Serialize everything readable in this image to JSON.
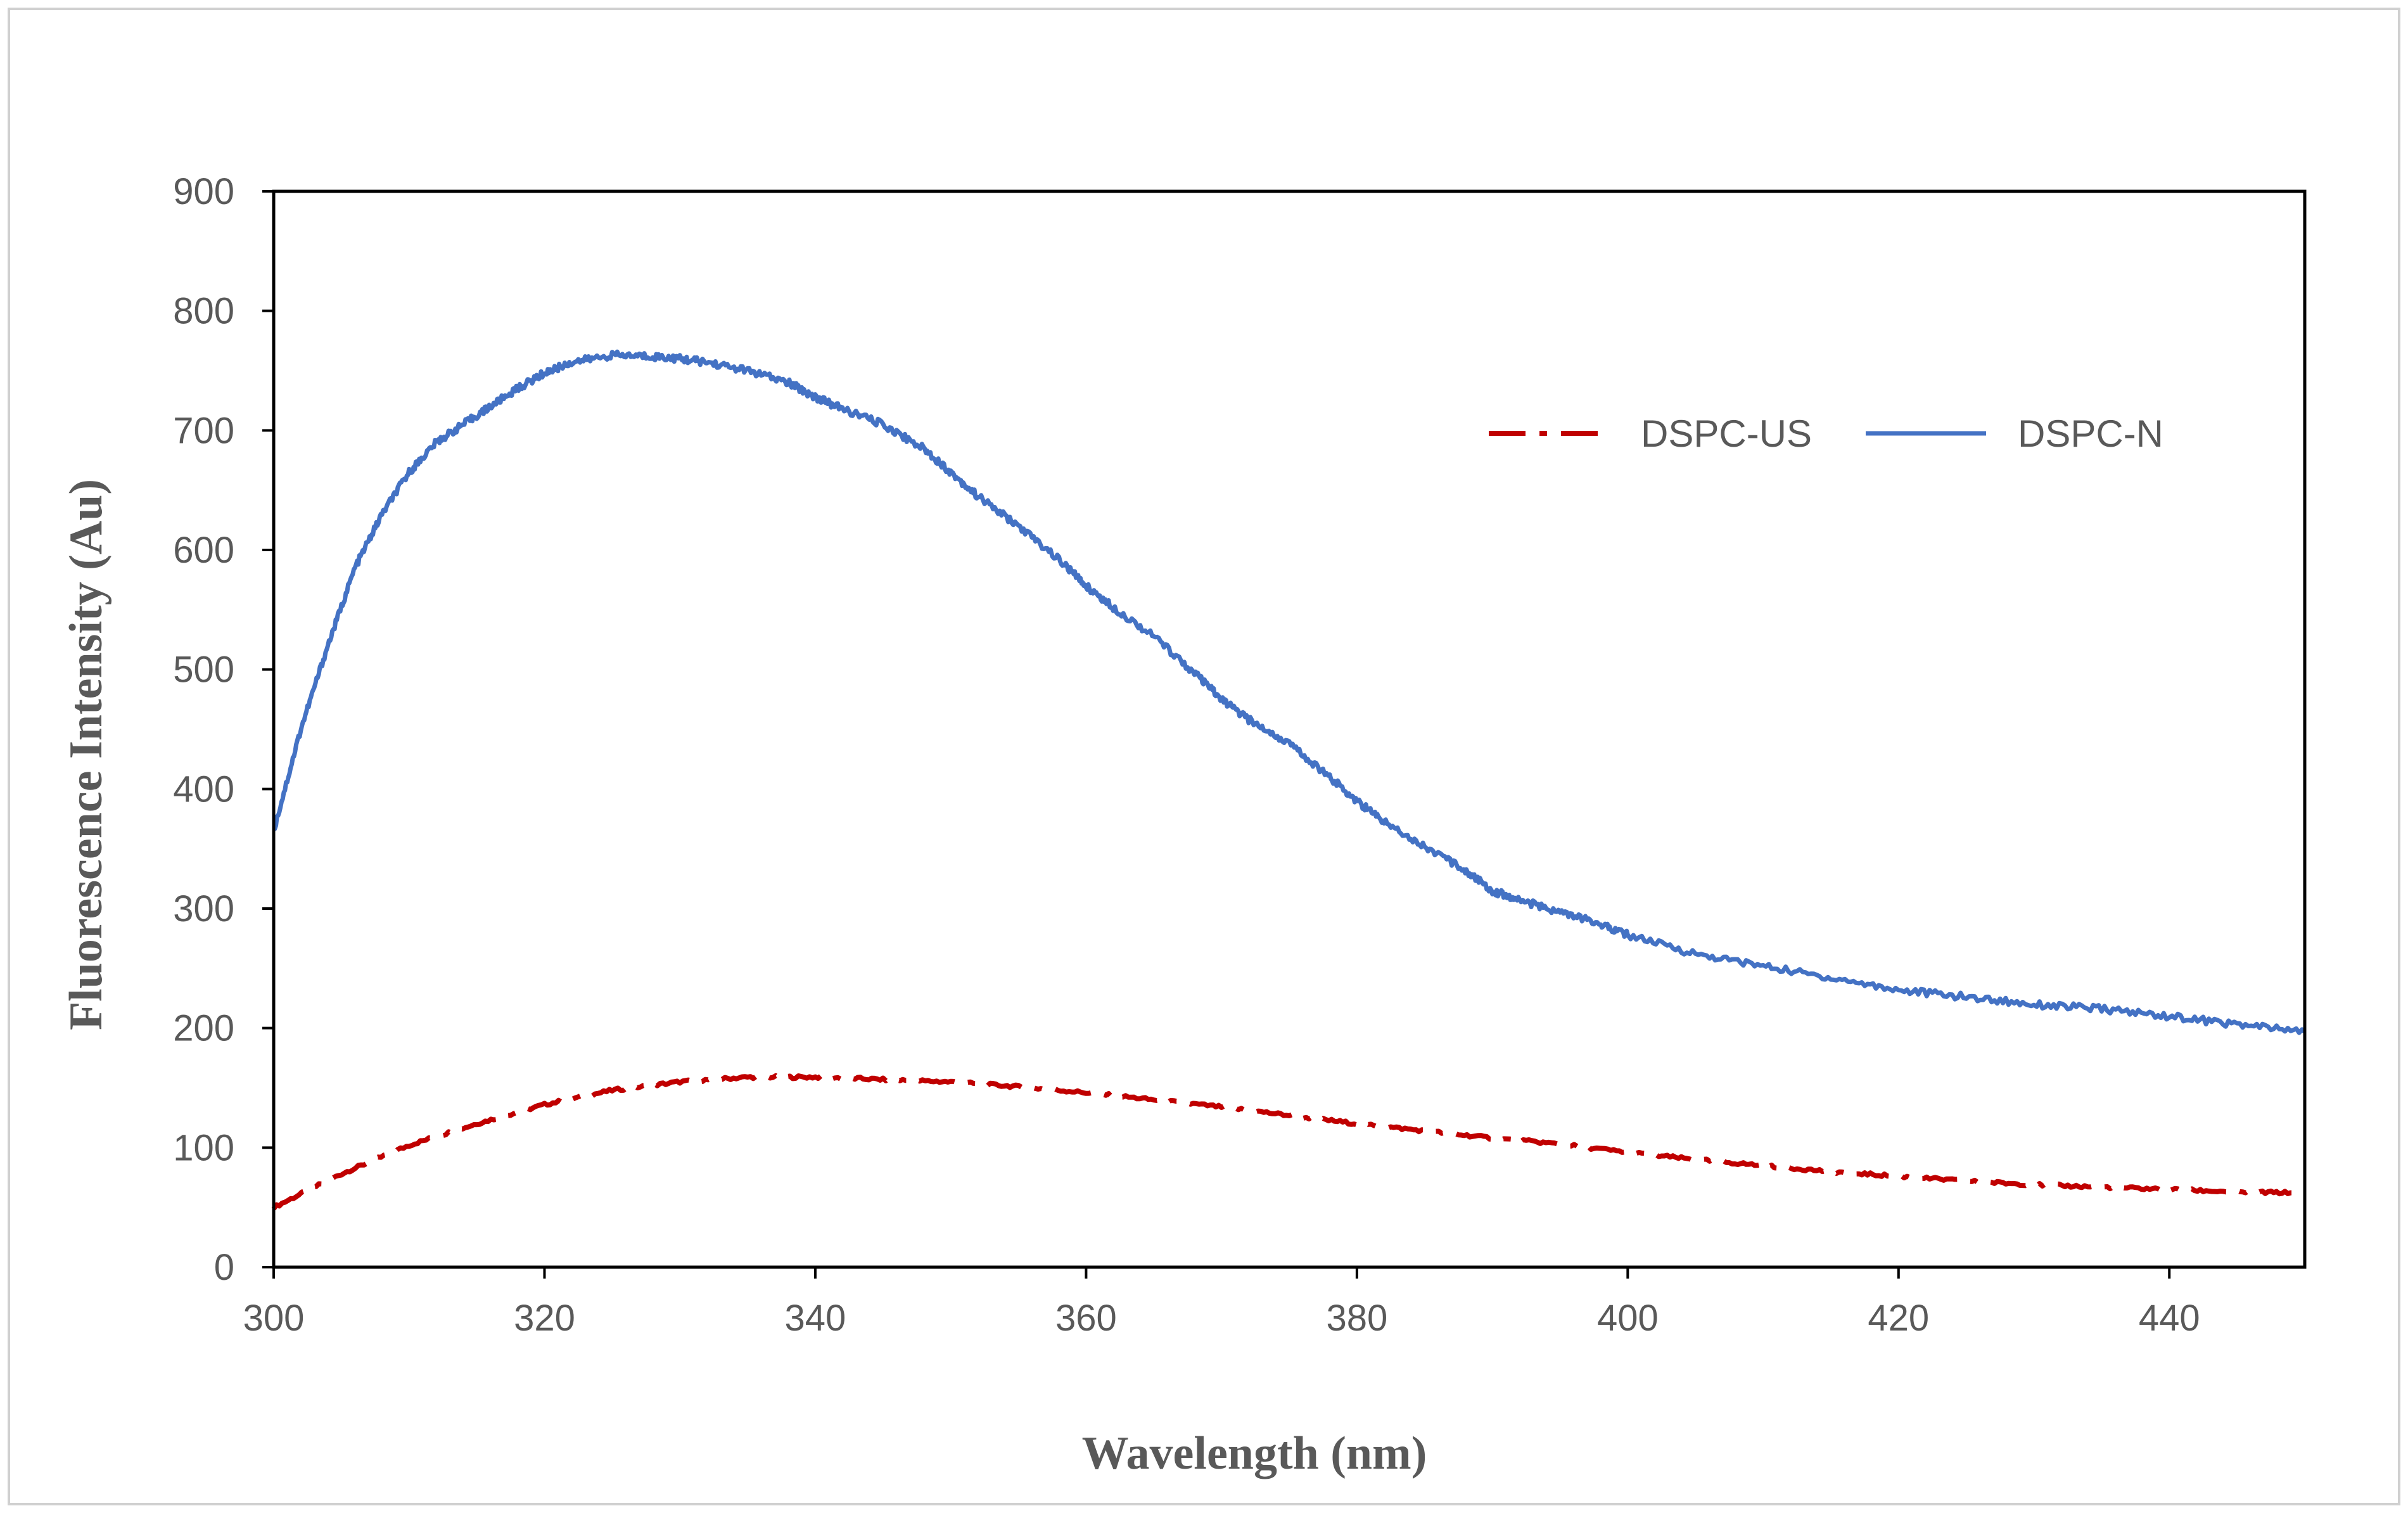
{
  "chart_data": {
    "type": "line",
    "title": "",
    "xlabel": "Wavelength (nm)",
    "ylabel": "Fluorescence Intensity (Au)",
    "xlim": [
      300,
      450
    ],
    "ylim": [
      0,
      900
    ],
    "xticks": [
      300,
      320,
      340,
      360,
      380,
      400,
      420,
      440
    ],
    "yticks": [
      0,
      100,
      200,
      300,
      400,
      500,
      600,
      700,
      800,
      900
    ],
    "grid": false,
    "legend_position": "top-right",
    "series": [
      {
        "name": "DSPC-US",
        "color": "#c00000",
        "style": "dash-dot",
        "x": [
          300,
          305,
          310,
          315,
          320,
          325,
          330,
          335,
          340,
          345,
          350,
          355,
          360,
          365,
          370,
          375,
          380,
          385,
          390,
          395,
          400,
          405,
          410,
          415,
          420,
          425,
          430,
          435,
          440,
          445,
          450
        ],
        "y": [
          50,
          78,
          102,
          120,
          136,
          148,
          155,
          159,
          159,
          157,
          155,
          151,
          146,
          140,
          134,
          127,
          120,
          114,
          108,
          103,
          96,
          90,
          85,
          80,
          76,
          72,
          69,
          67,
          65,
          63,
          62
        ]
      },
      {
        "name": "DSPC-N",
        "color": "#4472c4",
        "style": "solid",
        "x": [
          300,
          302,
          304,
          306,
          308,
          310,
          312,
          314,
          316,
          318,
          320,
          322,
          325,
          328,
          330,
          332,
          335,
          338,
          340,
          342,
          345,
          348,
          350,
          352,
          355,
          358,
          360,
          362,
          365,
          368,
          370,
          372,
          375,
          378,
          380,
          382,
          385,
          388,
          390,
          392,
          395,
          398,
          400,
          405,
          410,
          415,
          420,
          425,
          430,
          435,
          440,
          445,
          450
        ],
        "y": [
          365,
          450,
          520,
          585,
          630,
          665,
          690,
          705,
          720,
          735,
          748,
          757,
          763,
          762,
          760,
          757,
          750,
          740,
          728,
          718,
          705,
          685,
          665,
          645,
          620,
          592,
          570,
          552,
          528,
          497,
          475,
          458,
          438,
          410,
          390,
          373,
          352,
          332,
          315,
          307,
          297,
          287,
          278,
          262,
          252,
          242,
          232,
          226,
          220,
          216,
          210,
          203,
          197
        ]
      }
    ]
  }
}
